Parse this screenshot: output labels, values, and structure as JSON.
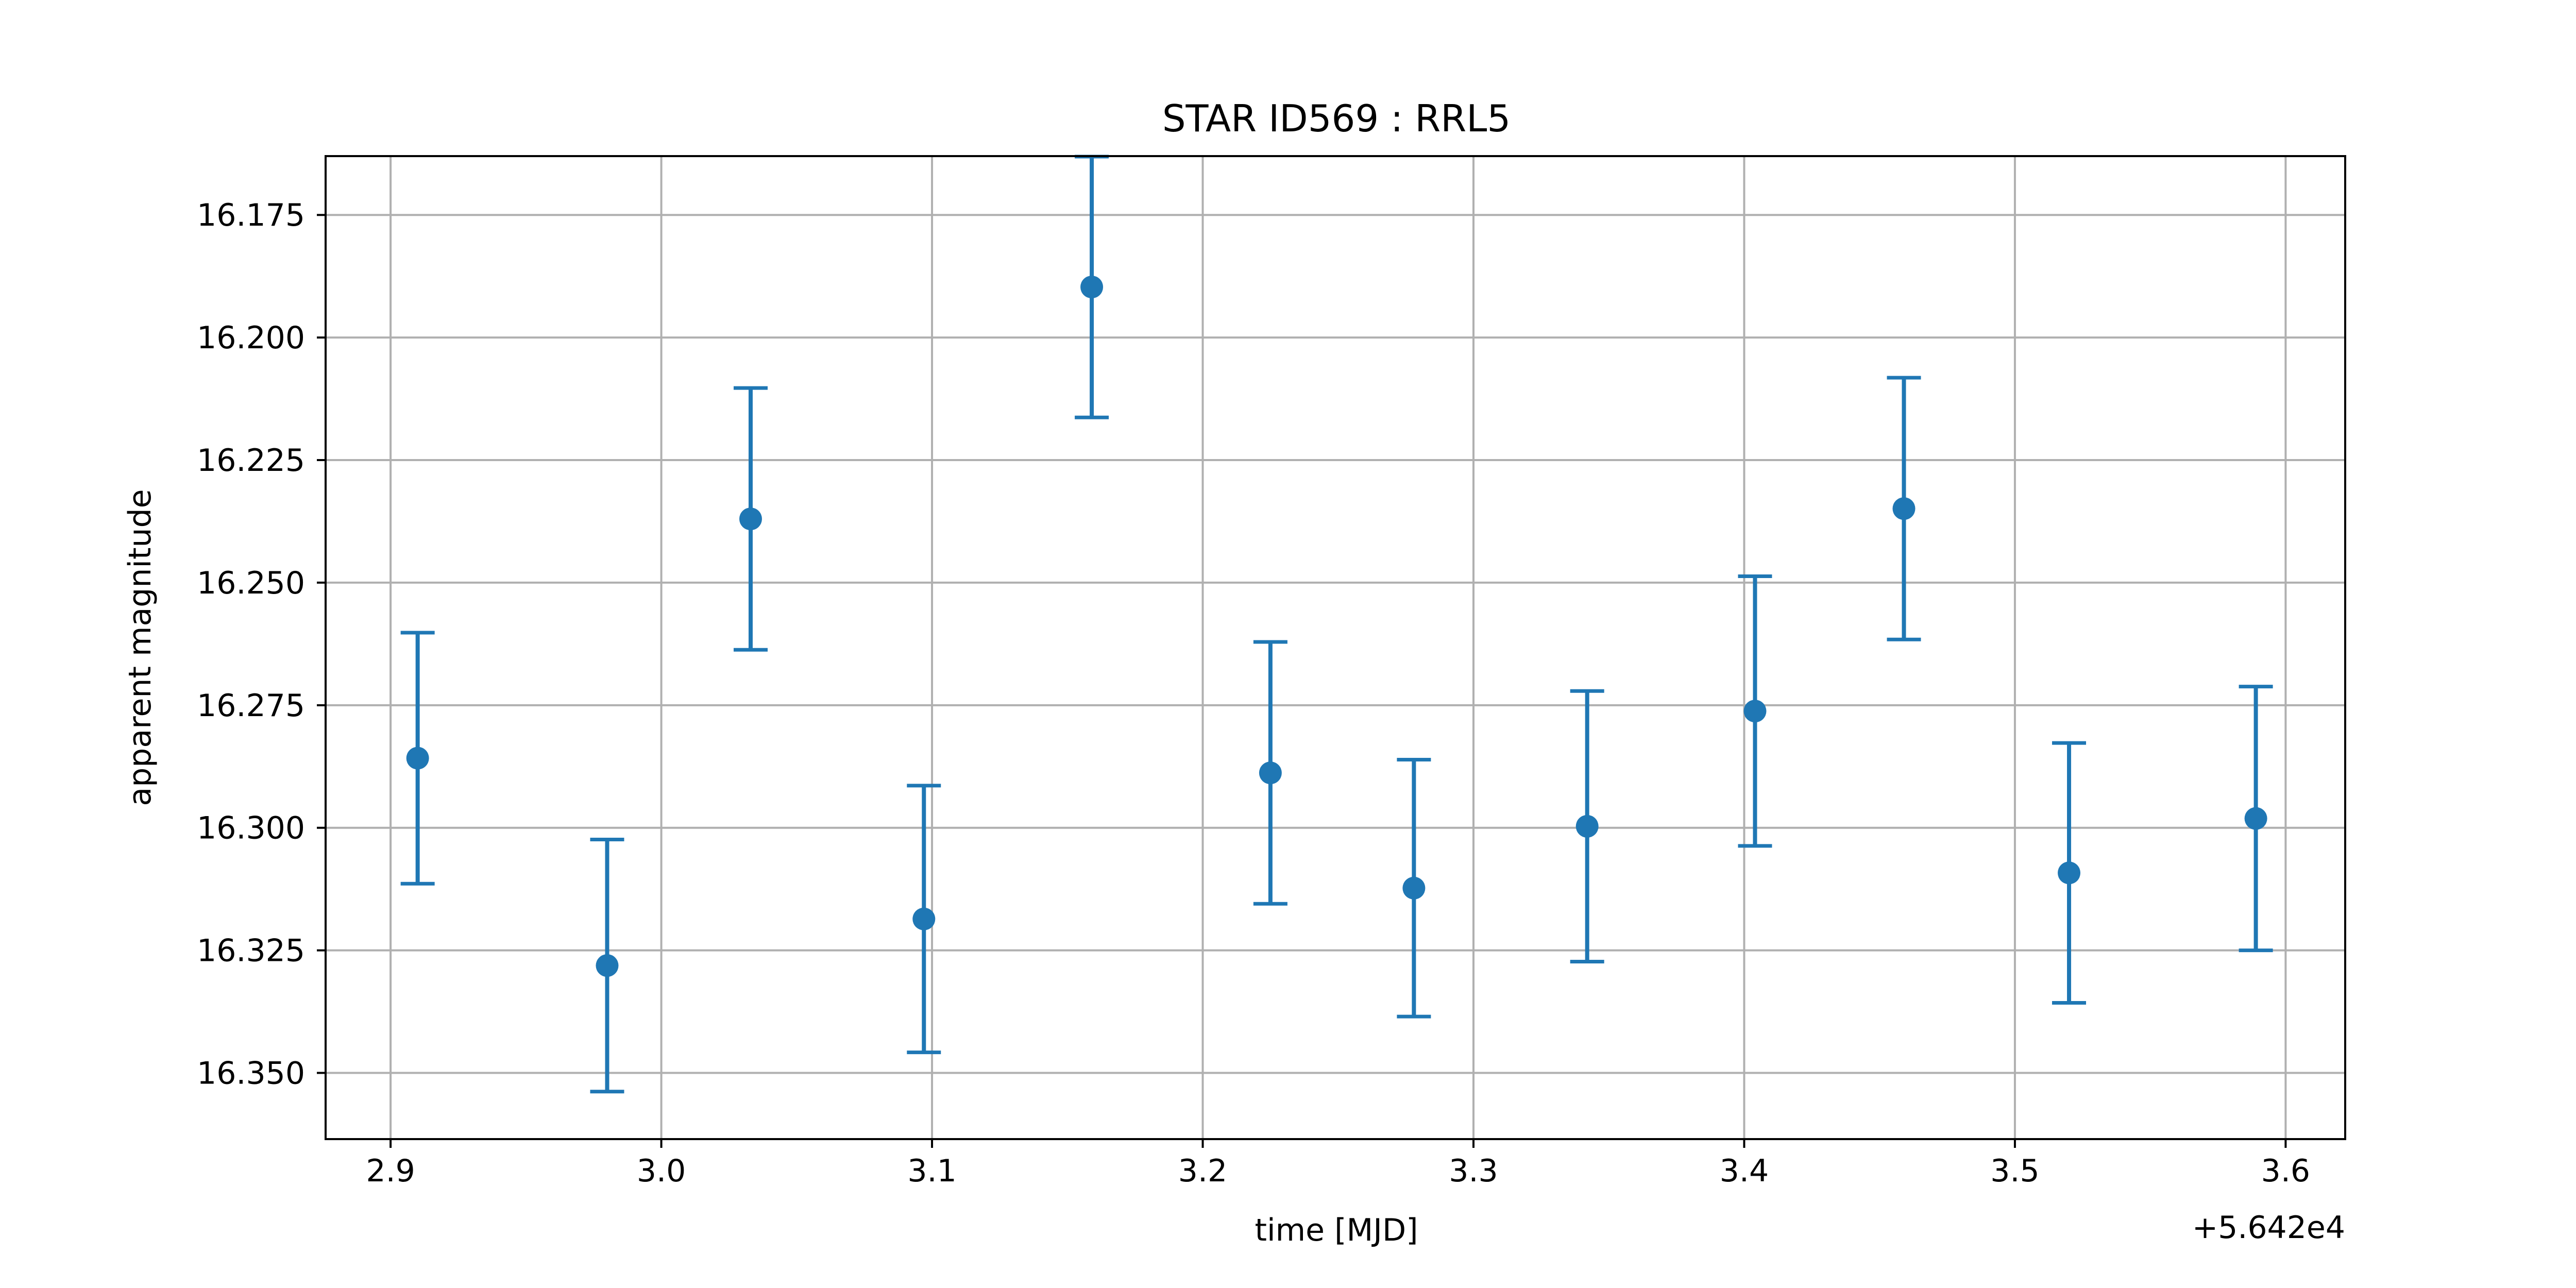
{
  "chart_data": {
    "type": "scatter",
    "title": "STAR ID569 : RRL5",
    "xlabel": "time [MJD]",
    "ylabel": "apparent magnitude",
    "x_offset_label": "+5.642e4",
    "xlim": [
      2.876,
      3.622
    ],
    "ylim": [
      16.163,
      16.3635
    ],
    "y_inverted": true,
    "grid": true,
    "x_ticks": [
      "2.9",
      "3.0",
      "3.1",
      "3.2",
      "3.3",
      "3.4",
      "3.5",
      "3.6"
    ],
    "y_ticks": [
      "16.175",
      "16.200",
      "16.225",
      "16.250",
      "16.275",
      "16.300",
      "16.325",
      "16.350"
    ],
    "series": [
      {
        "color": "#1f77b4",
        "points": [
          {
            "x": 2.91,
            "y": 16.2858,
            "err": 0.0256
          },
          {
            "x": 2.98,
            "y": 16.3281,
            "err": 0.0257
          },
          {
            "x": 3.033,
            "y": 16.237,
            "err": 0.0267
          },
          {
            "x": 3.097,
            "y": 16.3186,
            "err": 0.0272
          },
          {
            "x": 3.159,
            "y": 16.1897,
            "err": 0.0266
          },
          {
            "x": 3.225,
            "y": 16.2888,
            "err": 0.0267
          },
          {
            "x": 3.278,
            "y": 16.3123,
            "err": 0.0262
          },
          {
            "x": 3.342,
            "y": 16.2997,
            "err": 0.0276
          },
          {
            "x": 3.404,
            "y": 16.2762,
            "err": 0.0275
          },
          {
            "x": 3.459,
            "y": 16.2349,
            "err": 0.0267
          },
          {
            "x": 3.52,
            "y": 16.3092,
            "err": 0.0265
          },
          {
            "x": 3.589,
            "y": 16.2981,
            "err": 0.0269
          }
        ]
      }
    ]
  }
}
